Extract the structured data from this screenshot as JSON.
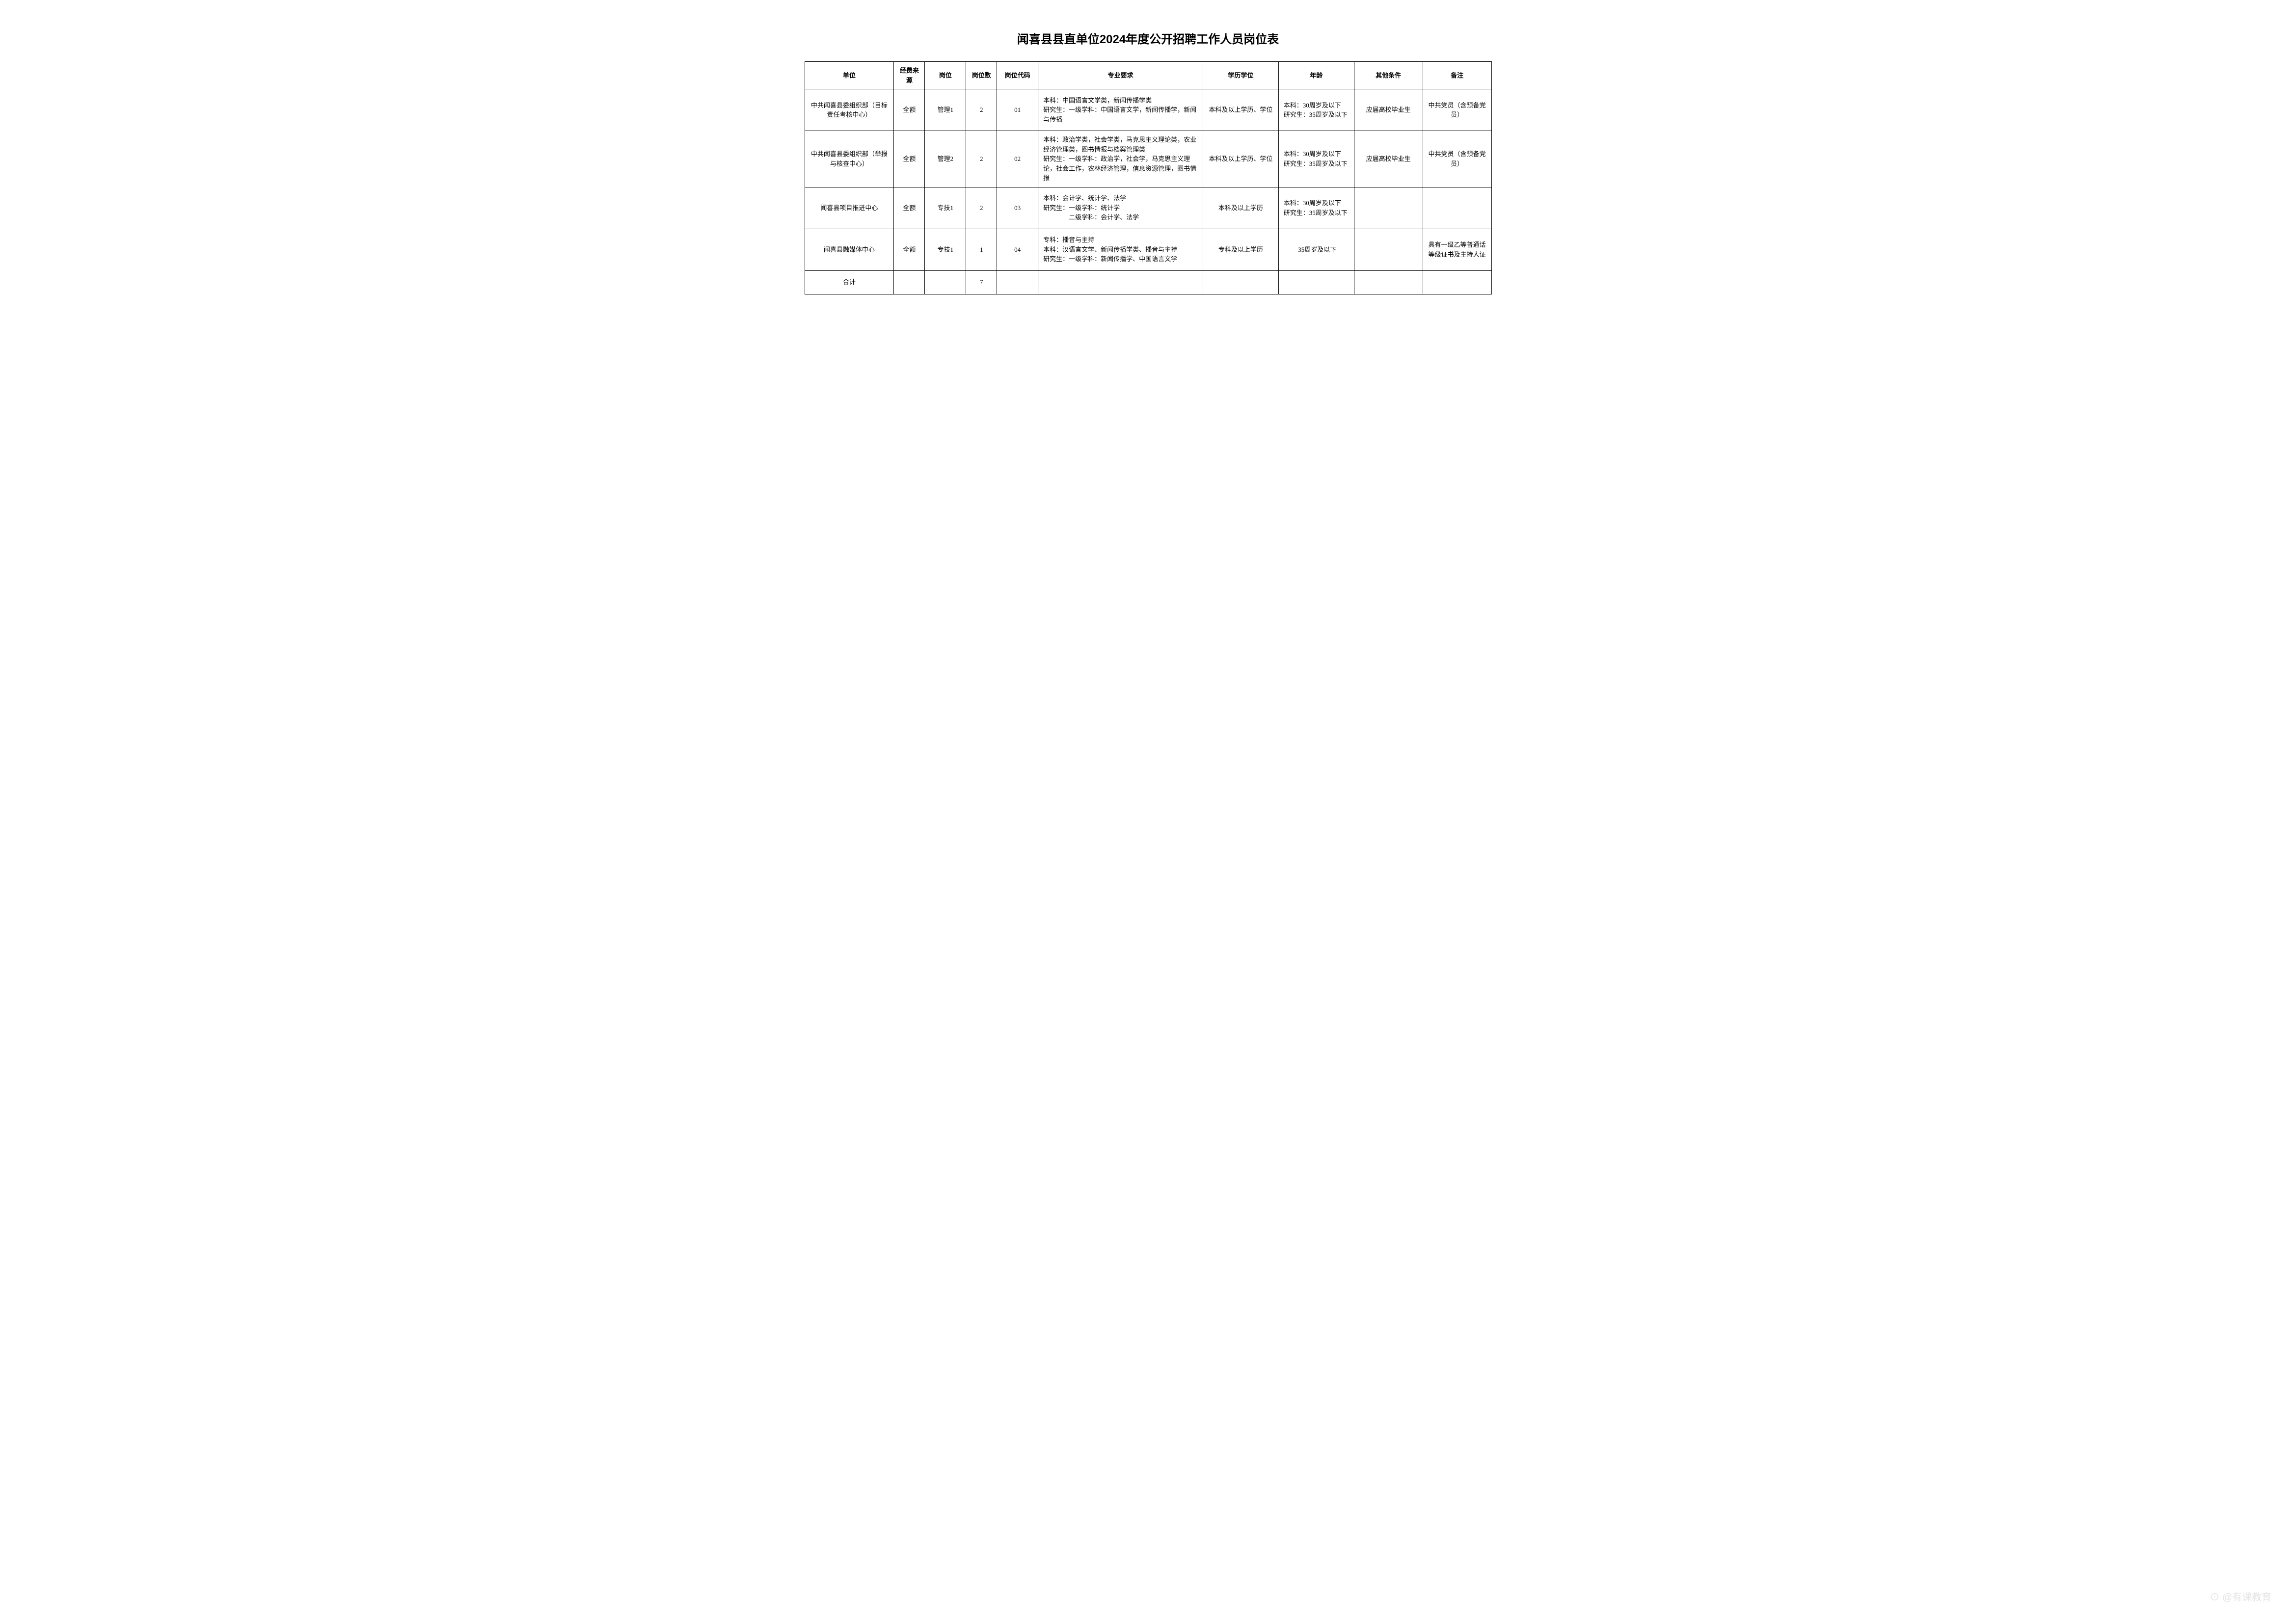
{
  "title": "闻喜县县直单位2024年度公开招聘工作人员岗位表",
  "headers": {
    "unit": "单位",
    "funding": "经费来源",
    "position": "岗位",
    "count": "岗位数",
    "code": "岗位代码",
    "major": "专业要求",
    "education": "学历学位",
    "age": "年龄",
    "other": "其他条件",
    "notes": "备注"
  },
  "rows": [
    {
      "unit": "中共闻喜县委组织部（目标责任考核中心）",
      "funding": "全额",
      "position": "管理1",
      "count": "2",
      "code": "01",
      "major": "本科：中国语言文学类，新闻传播学类\n研究生：一级学科：中国语言文学，新闻传播学，新闻与传播",
      "education": "本科及以上学历、学位",
      "age": "本科：30周岁及以下\n研究生：35周岁及以下",
      "other": "应届高校毕业生",
      "notes": "中共党员（含预备党员）"
    },
    {
      "unit": "中共闻喜县委组织部（举报与核查中心）",
      "funding": "全额",
      "position": "管理2",
      "count": "2",
      "code": "02",
      "major": "本科：政治学类，社会学类，马克思主义理论类，农业经济管理类，图书情报与档案管理类\n研究生：一级学科：政治学，社会学，马克思主义理论，社会工作，农林经济管理，信息资源管理，图书情报",
      "education": "本科及以上学历、学位",
      "age": "本科：30周岁及以下\n研究生：35周岁及以下",
      "other": "应届高校毕业生",
      "notes": "中共党员（含预备党员）"
    },
    {
      "unit": "闻喜县项目推进中心",
      "funding": "全额",
      "position": "专技1",
      "count": "2",
      "code": "03",
      "major": "本科：会计学、统计学、法学\n研究生：一级学科：统计学\n　　　　二级学科：会计学、法学",
      "education": "本科及以上学历",
      "age": "本科：30周岁及以下\n研究生：35周岁及以下",
      "other": "",
      "notes": ""
    },
    {
      "unit": "闻喜县融媒体中心",
      "funding": "全额",
      "position": "专技1",
      "count": "1",
      "code": "04",
      "major": "专科：播音与主持\n本科：汉语言文学、新闻传播学类、播音与主持\n研究生：一级学科：新闻传播学、中国语言文学",
      "education": "专科及以上学历",
      "age": "35周岁及以下",
      "other": "",
      "notes": "具有一级乙等普通话等级证书及主持人证"
    }
  ],
  "total": {
    "label": "合计",
    "count": "7"
  },
  "watermark": "⊙ @有课教育"
}
